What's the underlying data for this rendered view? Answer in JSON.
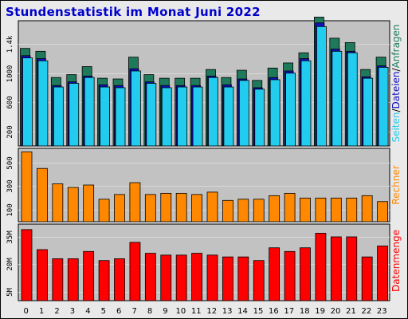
{
  "title": "Stundenstatistik im Monat Juni 2022",
  "colors": {
    "frame_bg": "#e9e9e9",
    "plot_bg": "#c2c2c2",
    "grid": "#d8d8d8",
    "hits": "#1f7a5c",
    "files": "#1010c0",
    "pages": "#22ccee",
    "visits": "#ff8800",
    "volume": "#ff0000",
    "title": "#0000cc"
  },
  "chart_data": [
    {
      "type": "bar",
      "name": "Seiten/Dateien/Anfragen",
      "y_axis_label_parts": [
        "Seiten",
        "/",
        "Dateien",
        "/",
        "Anfragen"
      ],
      "categories": [
        "0",
        "1",
        "2",
        "3",
        "4",
        "5",
        "6",
        "7",
        "8",
        "9",
        "10",
        "11",
        "12",
        "13",
        "14",
        "15",
        "16",
        "17",
        "18",
        "19",
        "20",
        "21",
        "22",
        "23"
      ],
      "ylim": [
        0,
        1720
      ],
      "y_ticks": [
        "200",
        "600",
        "1000",
        "1.4k"
      ],
      "y_tick_values": [
        200,
        600,
        1000,
        1400
      ],
      "series": [
        {
          "name": "Anfragen",
          "values": [
            1340,
            1300,
            940,
            980,
            1090,
            930,
            920,
            1220,
            980,
            930,
            930,
            930,
            1050,
            940,
            1040,
            900,
            1070,
            1140,
            1280,
            1770,
            1480,
            1420,
            1050,
            1220
          ]
        },
        {
          "name": "Dateien",
          "values": [
            1240,
            1200,
            830,
            880,
            960,
            840,
            830,
            1060,
            880,
            830,
            830,
            830,
            960,
            840,
            920,
            800,
            940,
            1030,
            1200,
            1690,
            1330,
            1300,
            950,
            1100
          ]
        },
        {
          "name": "Seiten",
          "values": [
            1210,
            1170,
            810,
            860,
            940,
            810,
            800,
            1030,
            860,
            800,
            810,
            810,
            940,
            810,
            900,
            780,
            910,
            1000,
            1170,
            1640,
            1300,
            1280,
            930,
            1080
          ]
        }
      ]
    },
    {
      "type": "bar",
      "name": "Rechner",
      "y_axis_label": "Rechner",
      "categories": [
        "0",
        "1",
        "2",
        "3",
        "4",
        "5",
        "6",
        "7",
        "8",
        "9",
        "10",
        "11",
        "12",
        "13",
        "14",
        "15",
        "16",
        "17",
        "18",
        "19",
        "20",
        "21",
        "22",
        "23"
      ],
      "ylim": [
        0,
        620
      ],
      "y_ticks": [
        "100",
        "300",
        "500"
      ],
      "y_tick_values": [
        100,
        300,
        500
      ],
      "series": [
        {
          "name": "Rechner",
          "values": [
            590,
            450,
            320,
            290,
            310,
            190,
            230,
            330,
            230,
            240,
            240,
            230,
            250,
            180,
            190,
            190,
            220,
            240,
            200,
            200,
            200,
            200,
            220,
            170
          ]
        }
      ]
    },
    {
      "type": "bar",
      "name": "Datenmenge",
      "y_axis_label": "Datenmenge",
      "categories": [
        "0",
        "1",
        "2",
        "3",
        "4",
        "5",
        "6",
        "7",
        "8",
        "9",
        "10",
        "11",
        "12",
        "13",
        "14",
        "15",
        "16",
        "17",
        "18",
        "19",
        "20",
        "21",
        "22",
        "23"
      ],
      "ylim": [
        0,
        42
      ],
      "y_ticks": [
        "5M",
        "20M",
        "35M"
      ],
      "y_tick_values": [
        5,
        20,
        35
      ],
      "series": [
        {
          "name": "Datenmenge",
          "values": [
            39,
            28,
            23,
            23,
            27,
            22,
            23,
            32,
            26,
            25,
            25,
            26,
            25,
            24,
            24,
            22,
            29,
            27,
            29,
            37,
            35,
            35,
            24,
            30
          ]
        }
      ]
    }
  ]
}
